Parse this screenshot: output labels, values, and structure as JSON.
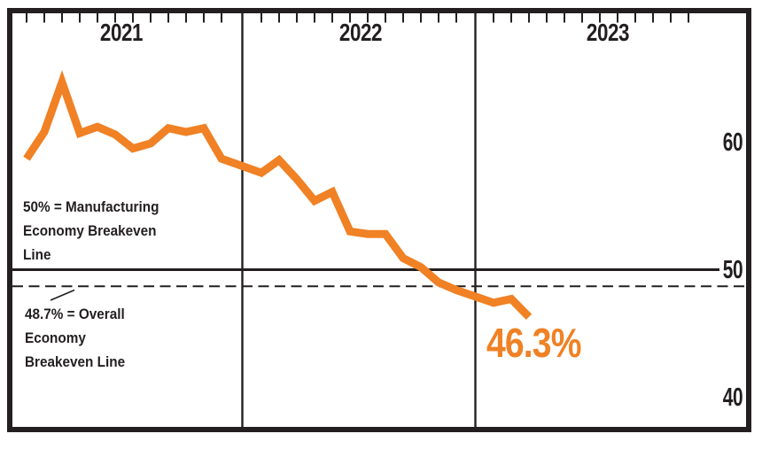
{
  "page": {
    "background": "#ffffff"
  },
  "colors": {
    "accent_orange": "#f08124",
    "ink": "#231f20"
  },
  "chart_data": {
    "type": "line",
    "title": "",
    "legend": "none",
    "grid": "vertical year dividers, horizontal breakeven reference lines",
    "x_axis": {
      "tick_style": "12 small top ticks per year (monthly)",
      "years": [
        {
          "label": "2021",
          "months": 12
        },
        {
          "label": "2022",
          "months": 12
        },
        {
          "label": "2023",
          "months": 3
        }
      ]
    },
    "y_axis": {
      "side": "right",
      "ticks": [
        {
          "label": "60",
          "value": 60
        },
        {
          "label": "50",
          "value": 50
        },
        {
          "label": "40",
          "value": 40
        }
      ],
      "range_approx": [
        37.8,
        70.3
      ]
    },
    "series": [
      {
        "name": "monthly-index-line",
        "color": "#f08124",
        "values": [
          58.7,
          60.8,
          64.7,
          60.7,
          61.2,
          60.6,
          59.5,
          59.9,
          61.1,
          60.8,
          61.1,
          58.7,
          57.6,
          58.6,
          57.1,
          55.4,
          56.1,
          53.0,
          52.8,
          52.8,
          50.9,
          50.2,
          49.0,
          48.4,
          47.4,
          47.7,
          46.3
        ]
      }
    ],
    "ref_lines": {
      "solid": {
        "value": 50,
        "style": "solid"
      },
      "dashed": {
        "value": 48.7,
        "style": "dashed"
      }
    },
    "end_label": "46.3%",
    "annotations": {
      "manufacturing_breakeven": "50% = Manufacturing\nEconomy Breakeven\nLine",
      "overall_breakeven": "48.7% = Overall\nEconomy\nBreakeven Line"
    }
  }
}
